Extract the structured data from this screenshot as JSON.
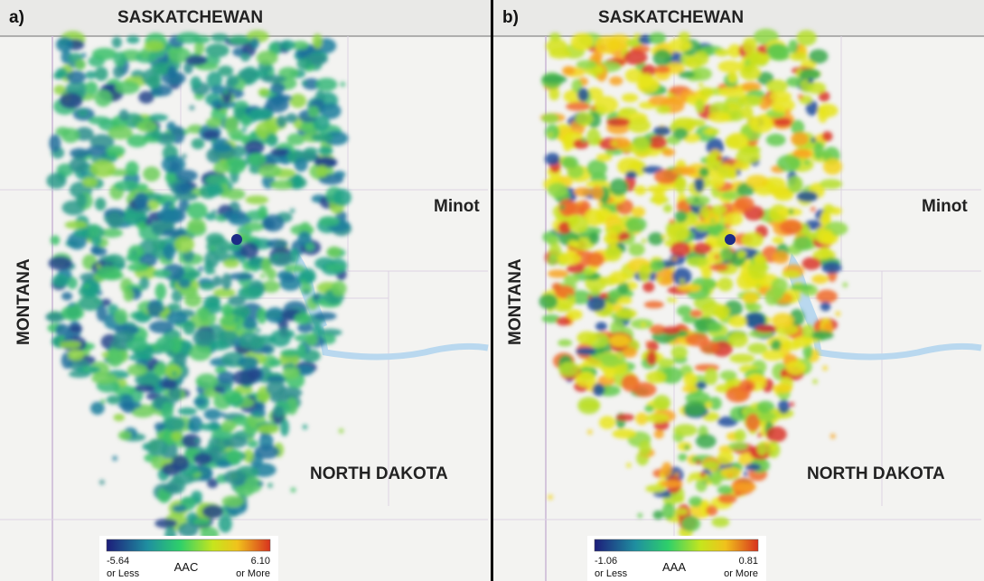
{
  "panels": [
    {
      "label": "a)",
      "places": {
        "north": "SASKATCHEWAN",
        "west": "MONTANA",
        "city": "Minot",
        "state": "NORTH DAKOTA"
      },
      "legend": {
        "min": "-5.64",
        "min_note": "or Less",
        "title": "AAC",
        "max": "6.10",
        "max_note": "or More"
      }
    },
    {
      "label": "b)",
      "places": {
        "north": "SASKATCHEWAN",
        "west": "MONTANA",
        "city": "Minot",
        "state": "NORTH DAKOTA"
      },
      "legend": {
        "min": "-1.06",
        "min_note": "or Less",
        "title": "AAA",
        "max": "0.81",
        "max_note": "or More"
      }
    }
  ]
}
